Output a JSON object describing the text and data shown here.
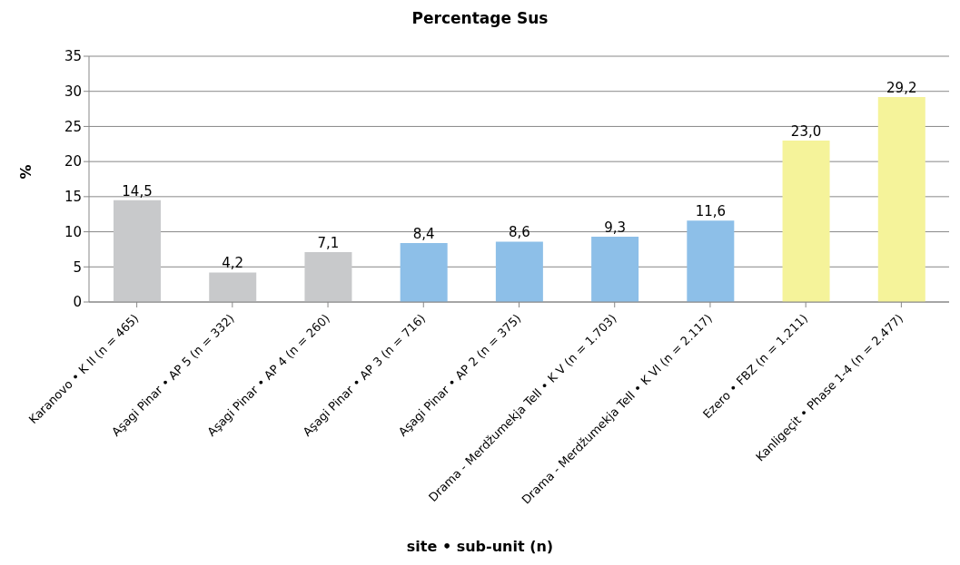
{
  "chart_data": {
    "type": "bar",
    "title": "Percentage Sus",
    "xlabel": "site • sub-unit (n)",
    "ylabel": "%",
    "categories": [
      "Karanovo • K II (n = 465)",
      "Aşagi Pinar • AP 5 (n = 332)",
      "Aşagi Pinar • AP 4 (n = 260)",
      "Aşagi Pinar • AP 3 (n = 716)",
      "Aşagi Pinar • AP 2 (n = 375)",
      "Drama - Merdžumekja Tell • K V (n = 1.703)",
      "Drama - Merdžumekja Tell • K VI (n = 2.117)",
      "Ezero • FBZ (n = 1.211)",
      "Kanligeçit • Phase 1-4 (n = 2.477)"
    ],
    "values": [
      14.5,
      4.2,
      7.1,
      8.4,
      8.6,
      9.3,
      11.6,
      23.0,
      29.2
    ],
    "value_labels": [
      "14,5",
      "4,2",
      "7,1",
      "8,4",
      "8,6",
      "9,3",
      "11,6",
      "23,0",
      "29,2"
    ],
    "colors": [
      "#c8c9cb",
      "#c8c9cb",
      "#c8c9cb",
      "#8dbfe8",
      "#8dbfe8",
      "#8dbfe8",
      "#8dbfe8",
      "#f5f39a",
      "#f5f39a"
    ],
    "ylim": [
      0,
      35
    ],
    "yticks": [
      0,
      5,
      10,
      15,
      20,
      25,
      30,
      35
    ],
    "grid": "y",
    "legend": false
  }
}
